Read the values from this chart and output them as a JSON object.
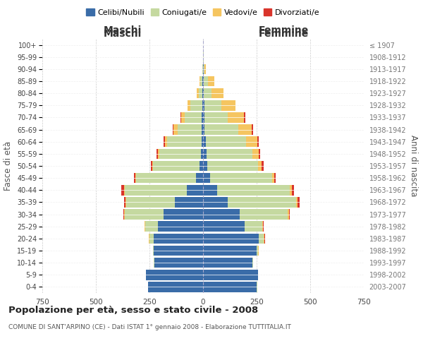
{
  "age_groups_bottom_to_top": [
    "0-4",
    "5-9",
    "10-14",
    "15-19",
    "20-24",
    "25-29",
    "30-34",
    "35-39",
    "40-44",
    "45-49",
    "50-54",
    "55-59",
    "60-64",
    "65-69",
    "70-74",
    "75-79",
    "80-84",
    "85-89",
    "90-94",
    "95-99",
    "100+"
  ],
  "birth_years_bottom_to_top": [
    "2003-2007",
    "1998-2002",
    "1993-1997",
    "1988-1992",
    "1983-1987",
    "1978-1982",
    "1973-1977",
    "1968-1972",
    "1963-1967",
    "1958-1962",
    "1953-1957",
    "1948-1952",
    "1943-1947",
    "1938-1942",
    "1933-1937",
    "1928-1932",
    "1923-1927",
    "1918-1922",
    "1913-1917",
    "1908-1912",
    "≤ 1907"
  ],
  "male_celibi": [
    255,
    265,
    228,
    230,
    230,
    210,
    185,
    130,
    75,
    32,
    18,
    10,
    8,
    5,
    5,
    4,
    2,
    2,
    0,
    0,
    0
  ],
  "male_coniugati": [
    2,
    2,
    2,
    5,
    20,
    60,
    180,
    230,
    290,
    280,
    215,
    195,
    160,
    115,
    80,
    55,
    18,
    10,
    2,
    1,
    0
  ],
  "male_vedovi": [
    0,
    0,
    0,
    0,
    2,
    2,
    2,
    2,
    3,
    3,
    4,
    5,
    10,
    18,
    18,
    12,
    10,
    5,
    0,
    0,
    0
  ],
  "male_divorziati": [
    0,
    0,
    0,
    0,
    2,
    2,
    5,
    8,
    12,
    8,
    8,
    8,
    5,
    2,
    2,
    0,
    0,
    0,
    0,
    0,
    0
  ],
  "female_nubili": [
    250,
    255,
    230,
    250,
    260,
    195,
    170,
    115,
    65,
    32,
    20,
    15,
    12,
    8,
    6,
    5,
    4,
    4,
    2,
    0,
    0
  ],
  "female_coniugate": [
    2,
    2,
    2,
    8,
    22,
    80,
    225,
    320,
    340,
    290,
    235,
    215,
    190,
    155,
    110,
    80,
    35,
    18,
    5,
    2,
    0
  ],
  "female_vedove": [
    0,
    0,
    0,
    2,
    5,
    5,
    5,
    5,
    8,
    10,
    18,
    30,
    50,
    65,
    75,
    65,
    55,
    30,
    5,
    2,
    0
  ],
  "female_divorziate": [
    0,
    0,
    0,
    0,
    2,
    2,
    5,
    10,
    12,
    8,
    10,
    8,
    8,
    5,
    5,
    2,
    2,
    0,
    0,
    0,
    0
  ],
  "colors": {
    "celibi": "#3a6ca8",
    "coniugati": "#c5d9a0",
    "vedovi": "#f5c560",
    "divorziati": "#d9342b"
  },
  "title": "Popolazione per età, sesso e stato civile - 2008",
  "subtitle": "COMUNE DI SANT'ARPINO (CE) - Dati ISTAT 1° gennaio 2008 - Elaborazione TUTTITALIA.IT",
  "xlabel_left": "Maschi",
  "xlabel_right": "Femmine",
  "ylabel_left": "Fasce di età",
  "ylabel_right": "Anni di nascita",
  "xlim": 750,
  "background_color": "#ffffff",
  "grid_color": "#cccccc",
  "bar_height": 0.85
}
